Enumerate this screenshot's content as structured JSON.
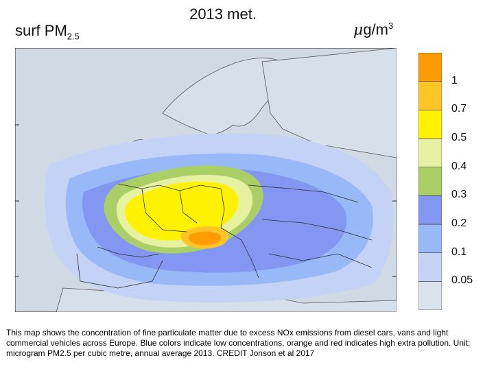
{
  "title": "2013 met.",
  "variable": {
    "name": "surf PM",
    "subscript": "2.5"
  },
  "unit": {
    "prefix": "μ",
    "base": "g/m",
    "exp": "3"
  },
  "colorbar": {
    "colors": [
      "#dbe4ee",
      "#c4d2f6",
      "#98b8f7",
      "#8296f2",
      "#a9cf66",
      "#e7f1a2",
      "#fff200",
      "#ffc526",
      "#ff9b05"
    ],
    "labels": [
      "0.05",
      "0.1",
      "0.2",
      "0.3",
      "0.4",
      "0.5",
      "0.7",
      "1"
    ]
  },
  "caption": "This map shows the concentration of fine particulate matter due to excess NOx emissions from diesel cars, vans and light commercial vehicles across Europe. Blue colors indicate low concentrations, orange and red indicates high extra pollution. Unit: microgram PM2.5 per cubic metre, annual average 2013. CREDIT Jonson et al 2017",
  "colors": {
    "sea": "#cfdae5",
    "border": "#2b2b2b"
  }
}
